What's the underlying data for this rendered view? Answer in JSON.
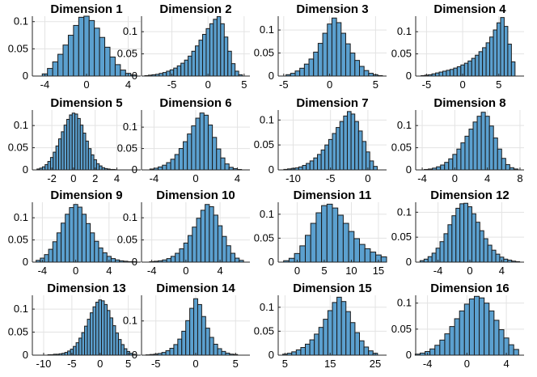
{
  "chart_data": [
    {
      "type": "bar",
      "title": "Dimension 1",
      "xlim": [
        -5.2,
        5.2
      ],
      "ylim": [
        0,
        0.11
      ],
      "xticks": [
        -4,
        0,
        4
      ],
      "yticks": [
        0,
        0.05,
        0.1
      ],
      "x": [
        -4.0,
        -3.5,
        -3.0,
        -2.5,
        -2.0,
        -1.5,
        -1.0,
        -0.5,
        0,
        0.5,
        1.0,
        1.5,
        2.0,
        2.5,
        3.0,
        3.5,
        4.0,
        4.5
      ],
      "values": [
        0.004,
        0.014,
        0.026,
        0.04,
        0.057,
        0.075,
        0.093,
        0.108,
        0.11,
        0.102,
        0.088,
        0.071,
        0.053,
        0.035,
        0.021,
        0.011,
        0.005,
        0.002
      ]
    },
    {
      "type": "bar",
      "title": "Dimension 2",
      "xlim": [
        -9.2,
        5.8
      ],
      "ylim": [
        0,
        0.135
      ],
      "xticks": [
        -5,
        0,
        5
      ],
      "yticks": [
        0,
        0.05,
        0.1
      ],
      "x": [
        -8.5,
        -8,
        -7.5,
        -7,
        -6.5,
        -6,
        -5.5,
        -5,
        -4.5,
        -4,
        -3.5,
        -3,
        -2.5,
        -2,
        -1.5,
        -1,
        -0.5,
        0,
        0.5,
        1,
        1.5,
        2,
        2.5,
        3,
        3.5,
        4,
        4.5
      ],
      "values": [
        0.001,
        0.002,
        0.003,
        0.004,
        0.006,
        0.008,
        0.011,
        0.014,
        0.018,
        0.023,
        0.029,
        0.036,
        0.045,
        0.056,
        0.068,
        0.081,
        0.094,
        0.107,
        0.118,
        0.128,
        0.134,
        0.118,
        0.088,
        0.056,
        0.028,
        0.011,
        0.003
      ]
    },
    {
      "type": "bar",
      "title": "Dimension 3",
      "xlim": [
        -5.6,
        6.2
      ],
      "ylim": [
        0,
        0.13
      ],
      "xticks": [
        -5,
        0,
        5
      ],
      "yticks": [
        0,
        0.05,
        0.1
      ],
      "x": [
        -4.5,
        -4,
        -3.5,
        -3,
        -2.5,
        -2,
        -1.5,
        -1,
        -0.5,
        0,
        0.5,
        1,
        1.5,
        2,
        2.5,
        3,
        3.5,
        4,
        4.5,
        5,
        5.5
      ],
      "values": [
        0.003,
        0.006,
        0.011,
        0.017,
        0.026,
        0.037,
        0.052,
        0.071,
        0.093,
        0.113,
        0.126,
        0.116,
        0.093,
        0.07,
        0.05,
        0.034,
        0.021,
        0.012,
        0.006,
        0.003,
        0.001
      ]
    },
    {
      "type": "bar",
      "title": "Dimension 4",
      "xlim": [
        -6.5,
        8.5
      ],
      "ylim": [
        0,
        0.135
      ],
      "xticks": [
        -5,
        0,
        5
      ],
      "yticks": [
        0,
        0.05,
        0.1
      ],
      "x": [
        -5.5,
        -5,
        -4.5,
        -4,
        -3.5,
        -3,
        -2.5,
        -2,
        -1.5,
        -1,
        -0.5,
        0,
        0.5,
        1,
        1.5,
        2,
        2.5,
        3,
        3.5,
        4,
        4.5,
        5,
        5.5,
        6,
        6.5,
        7
      ],
      "values": [
        0.001,
        0.002,
        0.003,
        0.005,
        0.007,
        0.009,
        0.011,
        0.013,
        0.015,
        0.018,
        0.021,
        0.025,
        0.029,
        0.034,
        0.04,
        0.047,
        0.055,
        0.064,
        0.075,
        0.088,
        0.104,
        0.12,
        0.132,
        0.112,
        0.072,
        0.032
      ]
    },
    {
      "type": "bar",
      "title": "Dimension 5",
      "xlim": [
        -3.8,
        6.2
      ],
      "ylim": [
        0,
        0.135
      ],
      "xticks": [
        -2,
        0,
        2,
        4
      ],
      "yticks": [
        0,
        0.05,
        0.1
      ],
      "x": [
        -3.25,
        -3,
        -2.75,
        -2.5,
        -2.25,
        -2,
        -1.75,
        -1.5,
        -1.25,
        -1,
        -0.75,
        -0.5,
        -0.25,
        0,
        0.25,
        0.5,
        0.75,
        1,
        1.25,
        1.5,
        1.75,
        2,
        2.25,
        2.5,
        2.75,
        3,
        3.25,
        3.5,
        3.75
      ],
      "values": [
        0.002,
        0.004,
        0.007,
        0.012,
        0.019,
        0.028,
        0.04,
        0.054,
        0.07,
        0.086,
        0.101,
        0.114,
        0.124,
        0.128,
        0.126,
        0.116,
        0.101,
        0.083,
        0.065,
        0.048,
        0.034,
        0.023,
        0.014,
        0.009,
        0.005,
        0.003,
        0.002,
        0.001,
        0.001
      ]
    },
    {
      "type": "bar",
      "title": "Dimension 6",
      "xlim": [
        -5.2,
        5.2
      ],
      "ylim": [
        0,
        0.14
      ],
      "xticks": [
        -4,
        0,
        4
      ],
      "yticks": [
        0,
        0.05,
        0.1
      ],
      "x": [
        -4.2,
        -3.8,
        -3.4,
        -3.0,
        -2.6,
        -2.2,
        -1.8,
        -1.4,
        -1.0,
        -0.6,
        -0.2,
        0.2,
        0.6,
        1.0,
        1.4,
        1.8,
        2.2,
        2.6,
        3.0,
        3.4,
        3.8,
        4.2
      ],
      "values": [
        0.002,
        0.004,
        0.007,
        0.011,
        0.017,
        0.025,
        0.036,
        0.05,
        0.066,
        0.084,
        0.103,
        0.121,
        0.133,
        0.128,
        0.105,
        0.076,
        0.049,
        0.028,
        0.014,
        0.006,
        0.003,
        0.001
      ]
    },
    {
      "type": "bar",
      "title": "Dimension 7",
      "xlim": [
        -12,
        2.5
      ],
      "ylim": [
        0,
        0.12
      ],
      "xticks": [
        -10,
        -5,
        0
      ],
      "yticks": [
        0,
        0.05,
        0.1
      ],
      "x": [
        -11,
        -10.5,
        -10,
        -9.5,
        -9,
        -8.5,
        -8,
        -7.5,
        -7,
        -6.5,
        -6,
        -5.5,
        -5,
        -4.5,
        -4,
        -3.5,
        -3,
        -2.5,
        -2,
        -1.5,
        -1,
        -0.5,
        0,
        0.5,
        1
      ],
      "values": [
        0.001,
        0.002,
        0.003,
        0.004,
        0.006,
        0.009,
        0.013,
        0.018,
        0.024,
        0.031,
        0.04,
        0.05,
        0.061,
        0.073,
        0.085,
        0.097,
        0.108,
        0.117,
        0.112,
        0.097,
        0.078,
        0.057,
        0.036,
        0.018,
        0.007
      ]
    },
    {
      "type": "bar",
      "title": "Dimension 8",
      "xlim": [
        -4.8,
        8.5
      ],
      "ylim": [
        0,
        0.135
      ],
      "xticks": [
        -4,
        0,
        4,
        8
      ],
      "yticks": [
        0,
        0.05,
        0.1
      ],
      "x": [
        -3.5,
        -3,
        -2.5,
        -2,
        -1.5,
        -1,
        -0.5,
        0,
        0.5,
        1,
        1.5,
        2,
        2.5,
        3,
        3.5,
        4,
        4.5,
        5,
        5.5,
        6,
        6.5,
        7,
        7.5
      ],
      "values": [
        0.001,
        0.002,
        0.004,
        0.007,
        0.011,
        0.017,
        0.025,
        0.035,
        0.047,
        0.061,
        0.076,
        0.092,
        0.108,
        0.121,
        0.13,
        0.121,
        0.099,
        0.072,
        0.047,
        0.026,
        0.012,
        0.005,
        0.002
      ]
    },
    {
      "type": "bar",
      "title": "Dimension 9",
      "xlim": [
        -5.2,
        7.8
      ],
      "ylim": [
        0,
        0.135
      ],
      "xticks": [
        -4,
        0,
        4
      ],
      "yticks": [
        0,
        0.05,
        0.1
      ],
      "x": [
        -4.5,
        -4,
        -3.5,
        -3,
        -2.5,
        -2,
        -1.5,
        -1,
        -0.5,
        0,
        0.5,
        1,
        1.5,
        2,
        2.5,
        3,
        3.5,
        4,
        4.5,
        5,
        5.5,
        6,
        6.5,
        7
      ],
      "values": [
        0.004,
        0.009,
        0.017,
        0.029,
        0.046,
        0.066,
        0.088,
        0.108,
        0.123,
        0.13,
        0.124,
        0.108,
        0.087,
        0.066,
        0.047,
        0.032,
        0.021,
        0.013,
        0.008,
        0.005,
        0.003,
        0.002,
        0.001,
        0.001
      ]
    },
    {
      "type": "bar",
      "title": "Dimension 10",
      "xlim": [
        -5.2,
        7.5
      ],
      "ylim": [
        0,
        0.135
      ],
      "xticks": [
        -4,
        0,
        4
      ],
      "yticks": [
        0,
        0.05,
        0.1
      ],
      "x": [
        -4,
        -3.5,
        -3,
        -2.5,
        -2,
        -1.5,
        -1,
        -0.5,
        0,
        0.5,
        1,
        1.5,
        2,
        2.5,
        3,
        3.5,
        4,
        4.5,
        5,
        5.5,
        6,
        6.5
      ],
      "values": [
        0.001,
        0.002,
        0.003,
        0.005,
        0.008,
        0.013,
        0.02,
        0.03,
        0.043,
        0.06,
        0.079,
        0.099,
        0.117,
        0.13,
        0.125,
        0.106,
        0.082,
        0.058,
        0.037,
        0.02,
        0.009,
        0.004
      ]
    },
    {
      "type": "bar",
      "title": "Dimension 11",
      "xlim": [
        -3.5,
        16.5
      ],
      "ylim": [
        0,
        0.125
      ],
      "xticks": [
        0,
        5,
        10,
        15
      ],
      "yticks": [
        0,
        0.05,
        0.1
      ],
      "x": [
        -2,
        -1,
        0,
        1,
        2,
        3,
        4,
        5,
        6,
        7,
        8,
        9,
        10,
        11,
        12,
        13,
        14,
        15,
        16
      ],
      "values": [
        0.003,
        0.008,
        0.018,
        0.034,
        0.056,
        0.081,
        0.103,
        0.118,
        0.121,
        0.113,
        0.098,
        0.081,
        0.064,
        0.049,
        0.037,
        0.028,
        0.021,
        0.015,
        0.011
      ]
    },
    {
      "type": "bar",
      "title": "Dimension 12",
      "xlim": [
        -6.8,
        6.8
      ],
      "ylim": [
        0,
        0.12
      ],
      "xticks": [
        -4,
        0,
        4
      ],
      "yticks": [
        0,
        0.05,
        0.1
      ],
      "x": [
        -6,
        -5.5,
        -5,
        -4.5,
        -4,
        -3.5,
        -3,
        -2.5,
        -2,
        -1.5,
        -1,
        -0.5,
        0,
        0.5,
        1,
        1.5,
        2,
        2.5,
        3,
        3.5,
        4,
        4.5,
        5,
        5.5,
        6
      ],
      "values": [
        0.003,
        0.006,
        0.011,
        0.018,
        0.028,
        0.041,
        0.057,
        0.075,
        0.093,
        0.108,
        0.117,
        0.118,
        0.111,
        0.097,
        0.08,
        0.063,
        0.047,
        0.034,
        0.024,
        0.016,
        0.01,
        0.006,
        0.004,
        0.002,
        0.001
      ]
    },
    {
      "type": "bar",
      "title": "Dimension 13",
      "xlim": [
        -12,
        7.2
      ],
      "ylim": [
        0,
        0.13
      ],
      "xticks": [
        -10,
        -5,
        0,
        5
      ],
      "yticks": [
        0,
        0.05,
        0.1
      ],
      "x": [
        -9,
        -8.5,
        -8,
        -7.5,
        -7,
        -6.5,
        -6,
        -5.5,
        -5,
        -4.5,
        -4,
        -3.5,
        -3,
        -2.5,
        -2,
        -1.5,
        -1,
        -0.5,
        0,
        0.5,
        1,
        1.5,
        2,
        2.5,
        3,
        3.5,
        4,
        4.5,
        5,
        5.5,
        6
      ],
      "values": [
        0.001,
        0.001,
        0.002,
        0.002,
        0.003,
        0.004,
        0.006,
        0.009,
        0.013,
        0.019,
        0.027,
        0.037,
        0.049,
        0.063,
        0.078,
        0.092,
        0.105,
        0.115,
        0.12,
        0.118,
        0.11,
        0.097,
        0.081,
        0.064,
        0.048,
        0.034,
        0.023,
        0.014,
        0.008,
        0.004,
        0.002
      ]
    },
    {
      "type": "bar",
      "title": "Dimension 14",
      "xlim": [
        -6.8,
        6.8
      ],
      "ylim": [
        0,
        0.175
      ],
      "xticks": [
        -5,
        0,
        5
      ],
      "yticks": [
        0,
        0.1
      ],
      "x": [
        -6,
        -5.5,
        -5,
        -4.5,
        -4,
        -3.5,
        -3,
        -2.5,
        -2,
        -1.5,
        -1,
        -0.5,
        0,
        0.5,
        1,
        1.5,
        2,
        2.5,
        3,
        3.5,
        4,
        4.5,
        5
      ],
      "values": [
        0.001,
        0.002,
        0.003,
        0.005,
        0.008,
        0.013,
        0.02,
        0.031,
        0.047,
        0.07,
        0.101,
        0.137,
        0.165,
        0.148,
        0.113,
        0.079,
        0.052,
        0.032,
        0.019,
        0.011,
        0.006,
        0.003,
        0.002
      ]
    },
    {
      "type": "bar",
      "title": "Dimension 15",
      "xlim": [
        3.5,
        27.5
      ],
      "ylim": [
        0,
        0.125
      ],
      "xticks": [
        5,
        15,
        25
      ],
      "yticks": [
        0,
        0.05,
        0.1
      ],
      "x": [
        5,
        6,
        7,
        8,
        9,
        10,
        11,
        12,
        13,
        14,
        15,
        16,
        17,
        18,
        19,
        20,
        21,
        22,
        23,
        24,
        25
      ],
      "values": [
        0.002,
        0.004,
        0.007,
        0.011,
        0.016,
        0.023,
        0.032,
        0.044,
        0.058,
        0.075,
        0.093,
        0.11,
        0.121,
        0.112,
        0.091,
        0.068,
        0.047,
        0.03,
        0.017,
        0.009,
        0.004
      ]
    },
    {
      "type": "bar",
      "title": "Dimension 16",
      "xlim": [
        -5.2,
        5.8
      ],
      "ylim": [
        0,
        0.115
      ],
      "xticks": [
        -4,
        0,
        4
      ],
      "yticks": [
        0,
        0.05,
        0.1
      ],
      "x": [
        -5,
        -4.5,
        -4,
        -3.5,
        -3,
        -2.5,
        -2,
        -1.5,
        -1,
        -0.5,
        0,
        0.5,
        1,
        1.5,
        2,
        2.5,
        3,
        3.5,
        4,
        4.5,
        5
      ],
      "values": [
        0.002,
        0.004,
        0.007,
        0.012,
        0.019,
        0.029,
        0.041,
        0.055,
        0.07,
        0.085,
        0.098,
        0.108,
        0.113,
        0.11,
        0.1,
        0.085,
        0.067,
        0.049,
        0.033,
        0.02,
        0.011
      ]
    }
  ]
}
